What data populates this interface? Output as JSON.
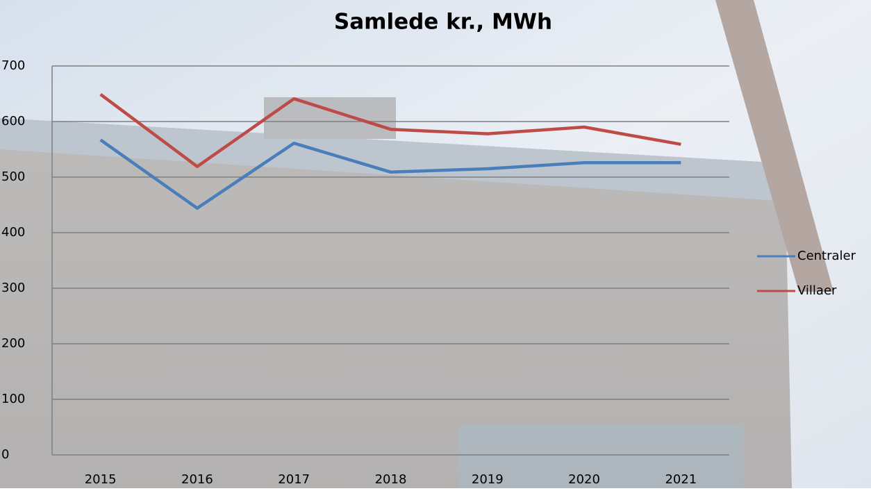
{
  "chart_data": {
    "type": "line",
    "title": "Samlede kr., MWh",
    "categories": [
      "2015",
      "2016",
      "2017",
      "2018",
      "2019",
      "2020",
      "2021"
    ],
    "series": [
      {
        "name": "Centraler",
        "color": "#4a7ebb",
        "values": [
          567,
          444,
          561,
          509,
          515,
          526,
          526
        ]
      },
      {
        "name": "Villaer",
        "color": "#be4b48",
        "values": [
          649,
          519,
          641,
          586,
          578,
          590,
          559
        ]
      }
    ],
    "ylim": [
      0,
      700
    ],
    "yticks": [
      0,
      100,
      200,
      300,
      400,
      500,
      600,
      700
    ],
    "grid": true,
    "legend": "right"
  }
}
